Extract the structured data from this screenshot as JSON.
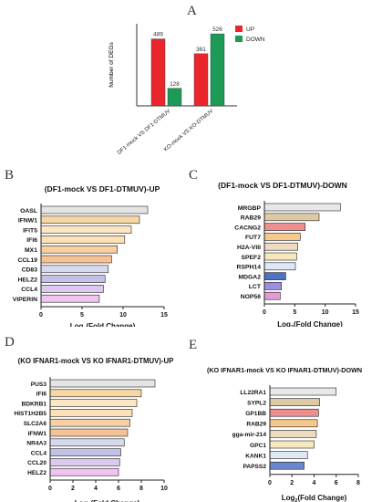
{
  "panels": {
    "A": {
      "letter": "A"
    },
    "B": {
      "letter": "B"
    },
    "C": {
      "letter": "C"
    },
    "D": {
      "letter": "D"
    },
    "E": {
      "letter": "E"
    }
  },
  "chart_data": [
    {
      "id": "A",
      "type": "bar",
      "ylabel": "Number of DEGs",
      "categories": [
        "DF1-mock VS DF1-DTMUV",
        "KO-mock VS KO-DTMUV"
      ],
      "series": [
        {
          "name": "UP",
          "color": "#e8262c",
          "values": [
            489,
            381
          ]
        },
        {
          "name": "DOWN",
          "color": "#1d9a55",
          "values": [
            128,
            526
          ]
        }
      ],
      "data_labels": [
        "489",
        "128",
        "381",
        "526"
      ],
      "ylim": [
        0,
        600
      ],
      "legend": "top-right",
      "grid": false
    },
    {
      "id": "B",
      "type": "bar",
      "orientation": "horizontal",
      "title": "(DF1-mock VS DF1-DTMUV)-UP",
      "xlabel_main": "Log",
      "xlabel_sub": "2",
      "xlabel_rest": "(Fold Change)",
      "categories": [
        "OASL",
        "IFNW1",
        "IFIT5",
        "IFI6",
        "MX1",
        "CCL19",
        "CD83",
        "HELZ2",
        "CCL4",
        "VIPERIN"
      ],
      "values": [
        13.0,
        12.0,
        11.0,
        10.2,
        9.3,
        8.6,
        8.2,
        7.8,
        7.6,
        7.1
      ],
      "colors": [
        "#e4e4e4",
        "#f6d7a3",
        "#fde6c4",
        "#fbe0b8",
        "#f8cfa2",
        "#f4c294",
        "#d7d9ef",
        "#c2c2e8",
        "#dcc9ef",
        "#f0c3f0"
      ],
      "xticks": [
        "0",
        "5",
        "10",
        "15"
      ],
      "xlim": [
        0,
        15
      ]
    },
    {
      "id": "C",
      "type": "bar",
      "orientation": "horizontal",
      "title": "(DF1-mock VS DF1-DTMUV)-DOWN",
      "xlabel_main": "Log",
      "xlabel_sub": "2",
      "xlabel_rest": "(Fold Change)",
      "categories": [
        "MRGBP",
        "RAB29",
        "CACNG2",
        "FUT7",
        "H2A-VIII",
        "SPEF2",
        "RSPH14",
        "MDGA2",
        "LCT",
        "NOP56"
      ],
      "values": [
        12.5,
        9.0,
        6.7,
        5.9,
        5.5,
        5.3,
        5.1,
        3.5,
        2.8,
        2.6
      ],
      "colors": [
        "#e8e8e8",
        "#dcc9a6",
        "#ee8f8f",
        "#f6c88c",
        "#efdcc0",
        "#f7e7bd",
        "#dfe8f4",
        "#4f72c2",
        "#9c8fe0",
        "#e39ad8"
      ],
      "xticks": [
        "0",
        "5",
        "10",
        "15"
      ],
      "xlim": [
        0,
        15
      ]
    },
    {
      "id": "D",
      "type": "bar",
      "orientation": "horizontal",
      "title": "(KO IFNAR1-mock VS KO IFNAR1-DTMUV)-UP",
      "xlabel_main": "Log",
      "xlabel_sub": "2",
      "xlabel_rest": "(Fold Change)",
      "categories": [
        "PUS3",
        "IFI6",
        "BDKRB1",
        "HIST1H2B5",
        "SLC2A6",
        "IFNW1",
        "NR4A3",
        "CCL4",
        "CCL20",
        "HELZ2"
      ],
      "values": [
        9.2,
        8.0,
        7.6,
        7.2,
        7.0,
        6.8,
        6.5,
        6.2,
        6.1,
        6.0
      ],
      "colors": [
        "#e4e4e4",
        "#f6d7a3",
        "#fde6c4",
        "#fbe0b8",
        "#f8cfa2",
        "#f4c294",
        "#d7d9ef",
        "#c2c2e8",
        "#dcc9ef",
        "#f0c3f0"
      ],
      "xticks": [
        "0",
        "2",
        "4",
        "6",
        "8",
        "10"
      ],
      "xlim": [
        0,
        10
      ]
    },
    {
      "id": "E",
      "type": "bar",
      "orientation": "horizontal",
      "title": "(KO IFNAR1-mock VS KO IFNAR1-DTMUV)-DOWN",
      "xlabel_main": "Log",
      "xlabel_sub": "2",
      "xlabel_rest": "(Fold Change)",
      "categories": [
        "LL22RA1",
        "SYPL2",
        "GP1BB",
        "RAB29",
        "gga-mir-214",
        "GPC1",
        "KANK1",
        "PAPSS2"
      ],
      "values": [
        6.0,
        4.5,
        4.4,
        4.3,
        4.2,
        4.0,
        3.4,
        3.1
      ],
      "colors": [
        "#e8e8e8",
        "#dcc9a6",
        "#ee8f8f",
        "#f6c88c",
        "#efdcc0",
        "#f7e7bd",
        "#dfe8f4",
        "#6a86cc"
      ],
      "xticks": [
        "0",
        "2",
        "4",
        "6",
        "8"
      ],
      "xlim": [
        0,
        8
      ]
    }
  ]
}
